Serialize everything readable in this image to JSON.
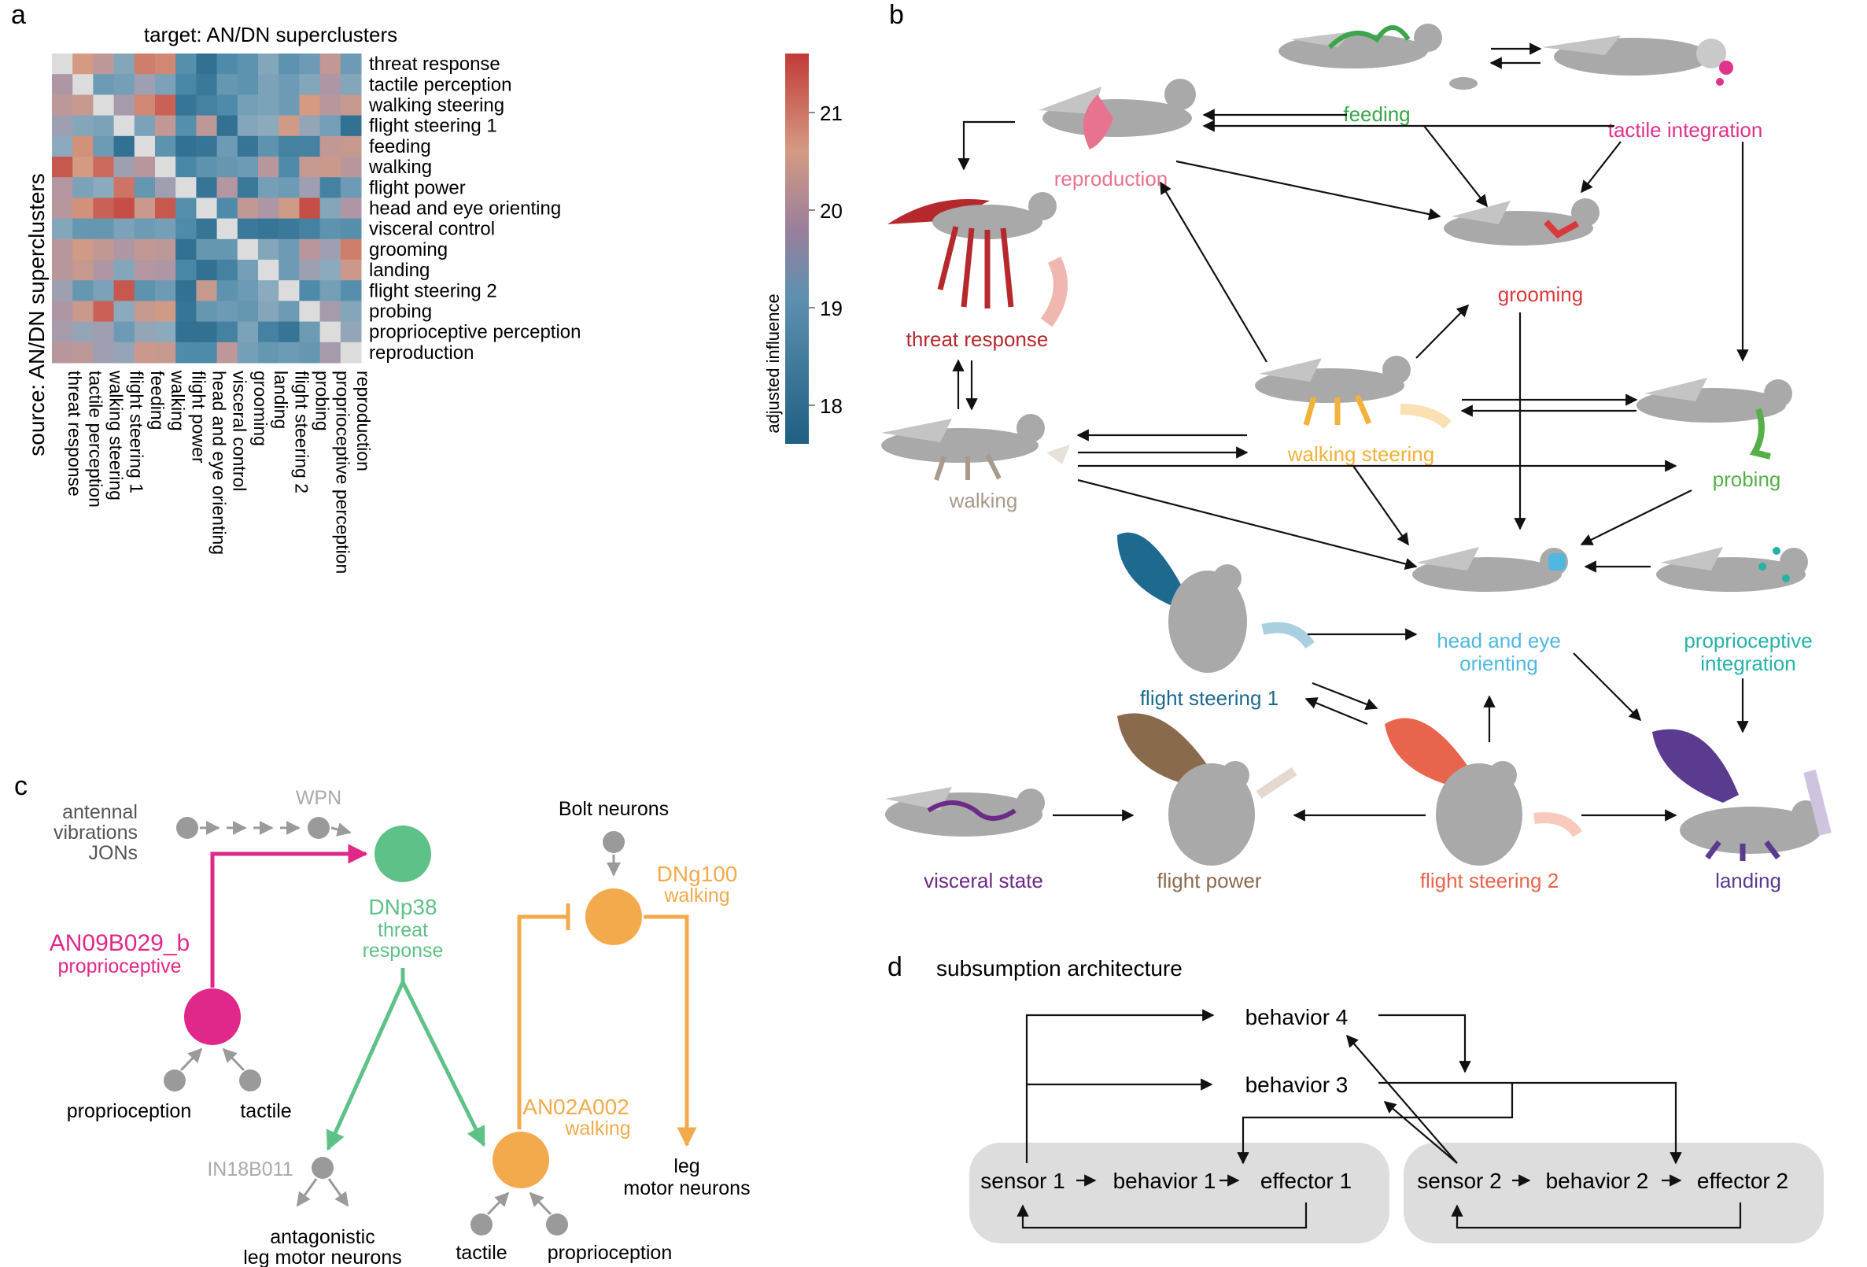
{
  "panel_letters": {
    "a": "a",
    "b": "b",
    "c": "c",
    "d": "d"
  },
  "panel_a": {
    "title": "target: AN/DN superclusters",
    "ylabel": "source: AN/DN superclusters",
    "colorbar_label": "adjusted influence",
    "colorbar_ticks": [
      "21",
      "20",
      "19",
      "18"
    ],
    "colorbar_range": [
      17.6,
      21.6
    ],
    "colors": {
      "low": "#1f5f82",
      "mid": "#dcdcdc",
      "high": "#c23b38"
    }
  },
  "chart_data": {
    "type": "heatmap",
    "title": "target: AN/DN superclusters",
    "ylabel": "source: AN/DN superclusters",
    "xlabel": "",
    "colorbar_label": "adjusted influence",
    "zlim": [
      17.6,
      21.6
    ],
    "rows": [
      "threat response",
      "tactile perception",
      "walking steering",
      "flight steering 1",
      "feeding",
      "walking",
      "flight power",
      "head and eye orienting",
      "visceral control",
      "grooming",
      "landing",
      "flight steering 2",
      "probing",
      "proprioceptive perception",
      "reproduction"
    ],
    "columns": [
      "threat response",
      "tactile perception",
      "walking steering",
      "flight steering 1",
      "feeding",
      "walking",
      "flight power",
      "head and eye orienting",
      "visceral control",
      "grooming",
      "landing",
      "flight steering 2",
      "probing",
      "proprioceptive perception",
      "reproduction"
    ],
    "values": [
      [
        null,
        20.6,
        20.1,
        19.3,
        20.9,
        20.8,
        18.7,
        18.0,
        18.6,
        18.8,
        19.3,
        18.8,
        19.0,
        20.2,
        19.0
      ],
      [
        19.8,
        null,
        19.0,
        19.1,
        19.6,
        19.2,
        18.5,
        18.2,
        18.9,
        18.8,
        19.2,
        19.0,
        19.3,
        19.8,
        19.3
      ],
      [
        20.1,
        20.3,
        null,
        19.7,
        20.8,
        21.2,
        18.1,
        18.4,
        18.6,
        19.1,
        19.2,
        19.0,
        20.6,
        20.0,
        20.3
      ],
      [
        19.6,
        19.3,
        19.2,
        null,
        19.2,
        20.2,
        18.7,
        20.1,
        18.0,
        19.3,
        19.4,
        20.5,
        19.5,
        19.1,
        18.0
      ],
      [
        19.4,
        20.7,
        19.0,
        18.0,
        null,
        18.8,
        18.0,
        18.1,
        19.0,
        18.1,
        18.8,
        18.4,
        18.4,
        20.2,
        20.3
      ],
      [
        21.3,
        20.6,
        21.1,
        19.6,
        20.0,
        null,
        18.5,
        18.8,
        18.9,
        19.0,
        20.0,
        18.6,
        20.3,
        20.4,
        20.0
      ],
      [
        19.9,
        19.2,
        19.4,
        21.0,
        18.9,
        19.6,
        null,
        18.1,
        19.9,
        18.2,
        19.1,
        19.0,
        19.6,
        18.4,
        19.0
      ],
      [
        20.0,
        20.7,
        21.2,
        21.4,
        20.4,
        21.3,
        18.7,
        null,
        18.6,
        20.2,
        19.8,
        20.5,
        21.4,
        19.3,
        19.8
      ],
      [
        19.3,
        18.9,
        18.9,
        19.2,
        19.0,
        19.1,
        18.6,
        18.1,
        null,
        18.2,
        18.1,
        18.2,
        18.4,
        18.8,
        18.7
      ],
      [
        20.0,
        20.5,
        20.2,
        19.8,
        20.2,
        20.1,
        18.0,
        18.9,
        18.9,
        null,
        19.3,
        19.0,
        20.0,
        19.6,
        20.9
      ],
      [
        20.0,
        20.3,
        19.8,
        19.3,
        19.9,
        19.8,
        18.5,
        18.0,
        18.4,
        19.1,
        null,
        19.0,
        19.6,
        19.4,
        20.4
      ],
      [
        19.6,
        18.9,
        19.2,
        21.3,
        18.8,
        19.0,
        18.0,
        20.3,
        18.8,
        19.0,
        19.4,
        null,
        18.6,
        19.1,
        18.7
      ],
      [
        19.8,
        20.4,
        21.2,
        19.4,
        20.3,
        20.5,
        18.1,
        18.9,
        19.0,
        18.9,
        19.3,
        19.0,
        null,
        19.7,
        19.3
      ],
      [
        19.7,
        19.5,
        19.6,
        19.0,
        19.5,
        19.4,
        18.0,
        18.0,
        18.4,
        19.2,
        18.4,
        18.1,
        19.0,
        null,
        19.5
      ],
      [
        20.0,
        20.1,
        19.6,
        19.5,
        20.4,
        20.3,
        18.6,
        18.6,
        20.1,
        19.1,
        18.9,
        19.0,
        18.9,
        19.7,
        null
      ]
    ]
  },
  "panel_b": {
    "nodes": {
      "feeding": "feeding",
      "tactile_integration": "tactile integration",
      "reproduction": "reproduction",
      "threat_response": "threat response",
      "grooming": "grooming",
      "walking": "walking",
      "walking_steering": "walking steering",
      "probing": "probing",
      "flight_steering_1": "flight steering 1",
      "head_eye_1": "head and eye",
      "head_eye_2": "orienting",
      "proprio_1": "proprioceptive",
      "proprio_2": "integration",
      "visceral_state": "visceral state",
      "flight_power": "flight power",
      "flight_steering_2": "flight steering 2",
      "landing": "landing"
    },
    "colors": {
      "feeding": "#3aa54a",
      "tactile_integration": "#e0338a",
      "reproduction": "#e8738f",
      "threat_response": "#b5292d",
      "grooming": "#d9393a",
      "walking": "#a89a8c",
      "walking_steering": "#f2b13a",
      "probing": "#56b048",
      "flight_steering_1": "#1d6a8e",
      "head_eye": "#50b8e0",
      "proprio": "#27b1a9",
      "visceral_state": "#6c2b86",
      "flight_power": "#8a6a4d",
      "flight_steering_2": "#e8644c",
      "landing": "#5a3b90",
      "fly_body": "#a9a9a9"
    }
  },
  "panel_c": {
    "antennal_1": "antennal",
    "antennal_2": "vibrations",
    "antennal_3": "JONs",
    "wpn": "WPN",
    "bolt": "Bolt neurons",
    "dnp38": "DNp38",
    "dnp38_sub_1": "threat",
    "dnp38_sub_2": "response",
    "an09": "AN09B029_b",
    "an09_sub": "proprioceptive",
    "dng100": "DNg100",
    "dng100_sub": "walking",
    "an02": "AN02A002",
    "an02_sub": "walking",
    "proprioception_left": "proprioception",
    "tactile_left": "tactile",
    "in18": "IN18B011",
    "antag_1": "antagonistic",
    "antag_2": "leg motor neurons",
    "leg_1": "leg",
    "leg_2": "motor neurons",
    "tactile_right": "tactile",
    "proprioception_right": "proprioception",
    "colors": {
      "pink": "#e0288a",
      "green": "#5ec187",
      "orange": "#f2aa4c",
      "gray": "#9a9a9a"
    }
  },
  "panel_d": {
    "title": "subsumption architecture",
    "behavior4": "behavior 4",
    "behavior3": "behavior 3",
    "sensor1": "sensor 1",
    "behavior1": "behavior 1",
    "effector1": "effector 1",
    "sensor2": "sensor 2",
    "behavior2": "behavior 2",
    "effector2": "effector 2",
    "box_color": "#dddddd"
  }
}
